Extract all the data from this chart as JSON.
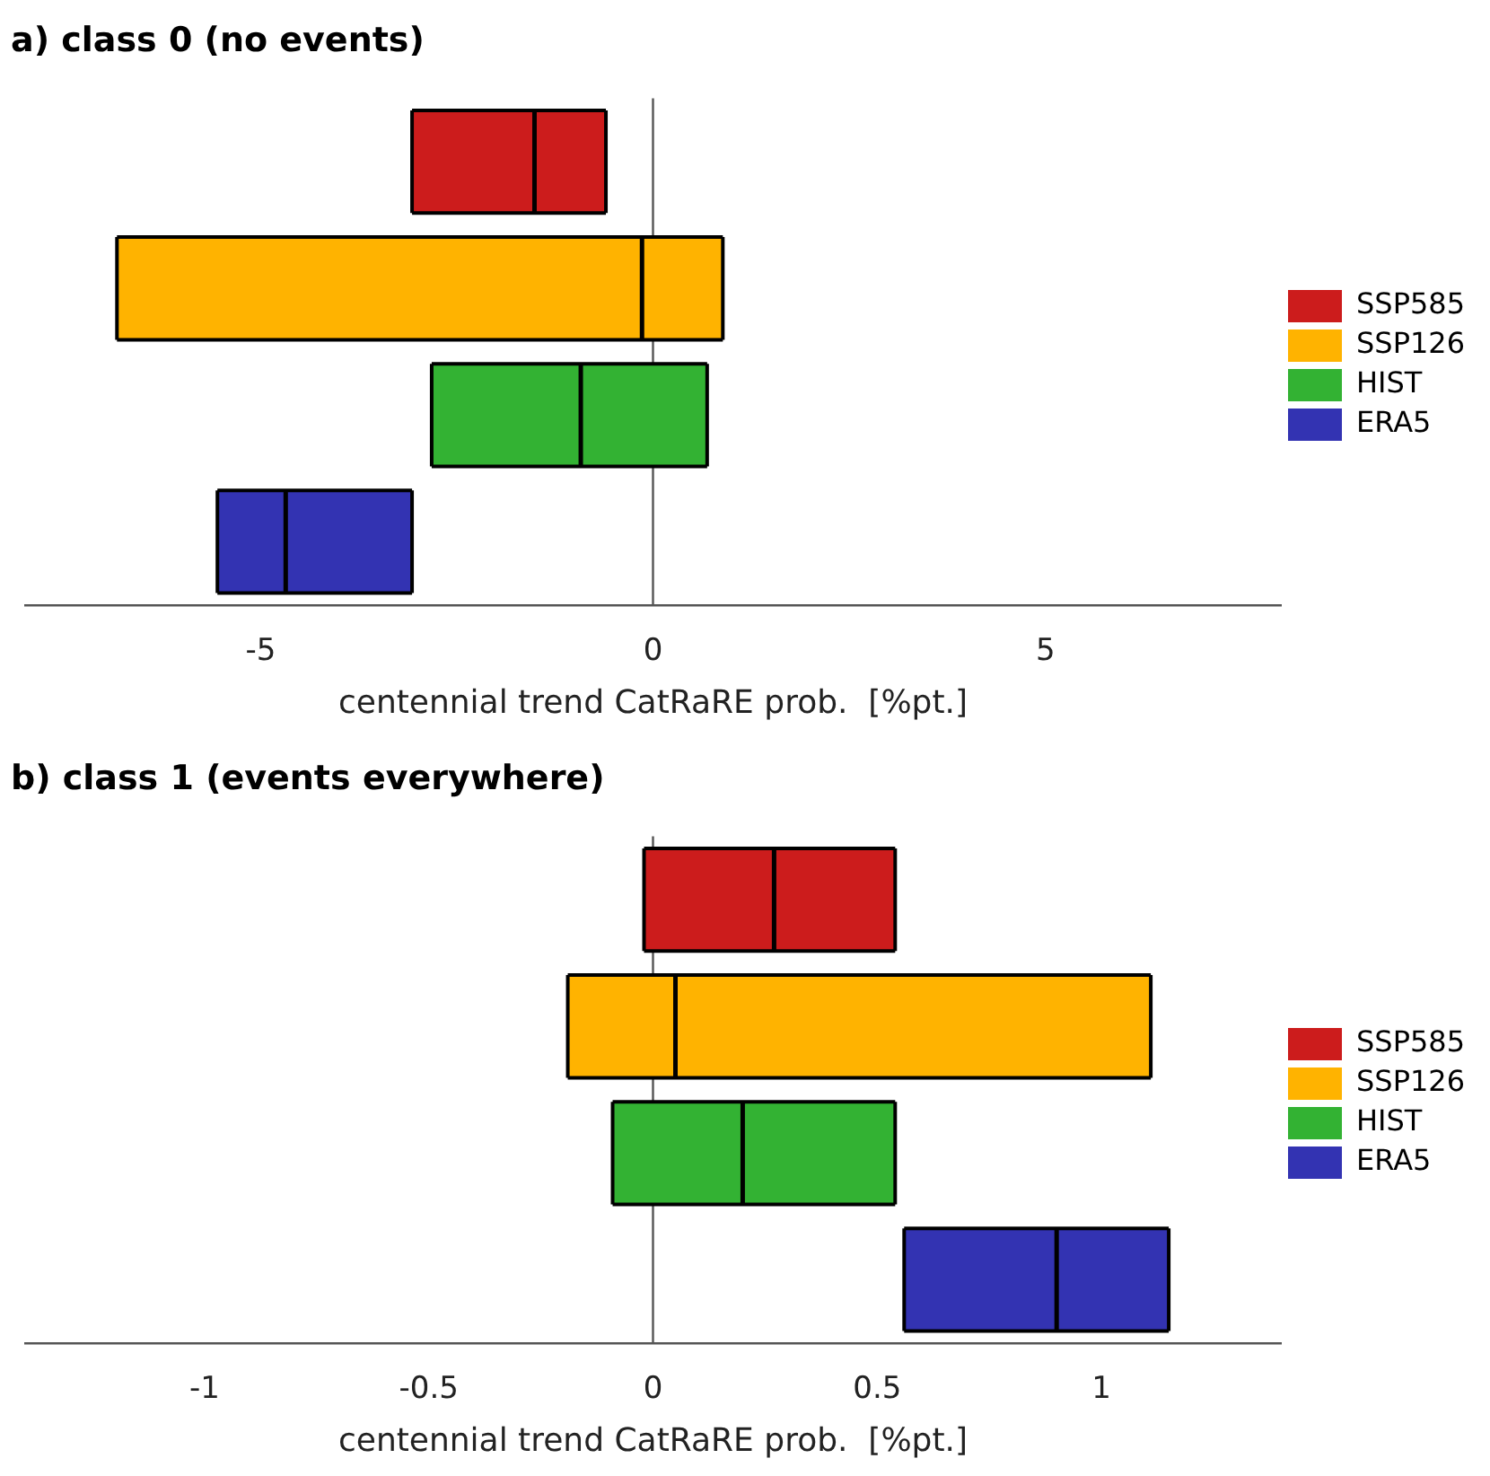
{
  "chart_data": [
    {
      "type": "box",
      "orientation": "horizontal",
      "title": "a) class 0 (no events)",
      "xlabel": "centennial trend CatRaRE prob.  [%pt.]",
      "categories": [
        null,
        null,
        null,
        null
      ],
      "xlim": [
        -8,
        8
      ],
      "xticks": [
        -5,
        0,
        5
      ],
      "grid": false,
      "legend": "right",
      "tick_labels": "x",
      "ref_lines": [
        {
          "axis": "x",
          "value": 0,
          "color": "#555555"
        }
      ],
      "series": [
        {
          "name": "SSP585",
          "color": "#cc1c1c",
          "boxes": [
            {
              "low": -3.07,
              "q1": -3.07,
              "median": -1.51,
              "q3": -0.6,
              "high": -0.6
            },
            null,
            null,
            null
          ]
        },
        {
          "name": "SSP126",
          "color": "#ffb300",
          "boxes": [
            null,
            {
              "low": -6.83,
              "q1": -6.83,
              "median": -0.14,
              "q3": 0.89,
              "high": 0.89
            },
            null,
            null
          ]
        },
        {
          "name": "HIST",
          "color": "#33b233",
          "boxes": [
            null,
            null,
            {
              "low": -2.82,
              "q1": -2.82,
              "median": -0.92,
              "q3": 0.69,
              "high": 0.69
            },
            null
          ]
        },
        {
          "name": "ERA5",
          "color": "#3333b2",
          "boxes": [
            null,
            null,
            null,
            {
              "low": -5.55,
              "q1": -5.55,
              "median": -4.68,
              "q3": -3.07,
              "high": -3.07
            }
          ]
        }
      ]
    },
    {
      "type": "box",
      "orientation": "horizontal",
      "title": "b) class 1 (events everywhere)",
      "xlabel": "centennial trend CatRaRE prob.  [%pt.]",
      "categories": [
        null,
        null,
        null,
        null
      ],
      "xlim": [
        -1.4,
        1.4
      ],
      "xticks": [
        -1,
        -0.5,
        0,
        0.5,
        1
      ],
      "grid": false,
      "legend": "right",
      "tick_labels": "x",
      "ref_lines": [
        {
          "axis": "x",
          "value": 0,
          "color": "#555555"
        }
      ],
      "series": [
        {
          "name": "SSP585",
          "color": "#cc1c1c",
          "boxes": [
            {
              "low": -0.02,
              "q1": -0.02,
              "median": 0.27,
              "q3": 0.54,
              "high": 0.54
            },
            null,
            null,
            null
          ]
        },
        {
          "name": "SSP126",
          "color": "#ffb300",
          "boxes": [
            null,
            {
              "low": -0.19,
              "q1": -0.19,
              "median": 0.05,
              "q3": 1.11,
              "high": 1.11
            },
            null,
            null
          ]
        },
        {
          "name": "HIST",
          "color": "#33b233",
          "boxes": [
            null,
            null,
            {
              "low": -0.09,
              "q1": -0.09,
              "median": 0.2,
              "q3": 0.54,
              "high": 0.54
            },
            null
          ]
        },
        {
          "name": "ERA5",
          "color": "#3333b2",
          "boxes": [
            null,
            null,
            null,
            {
              "low": 0.56,
              "q1": 0.56,
              "median": 0.9,
              "q3": 1.15,
              "high": 1.15
            }
          ]
        }
      ]
    }
  ]
}
